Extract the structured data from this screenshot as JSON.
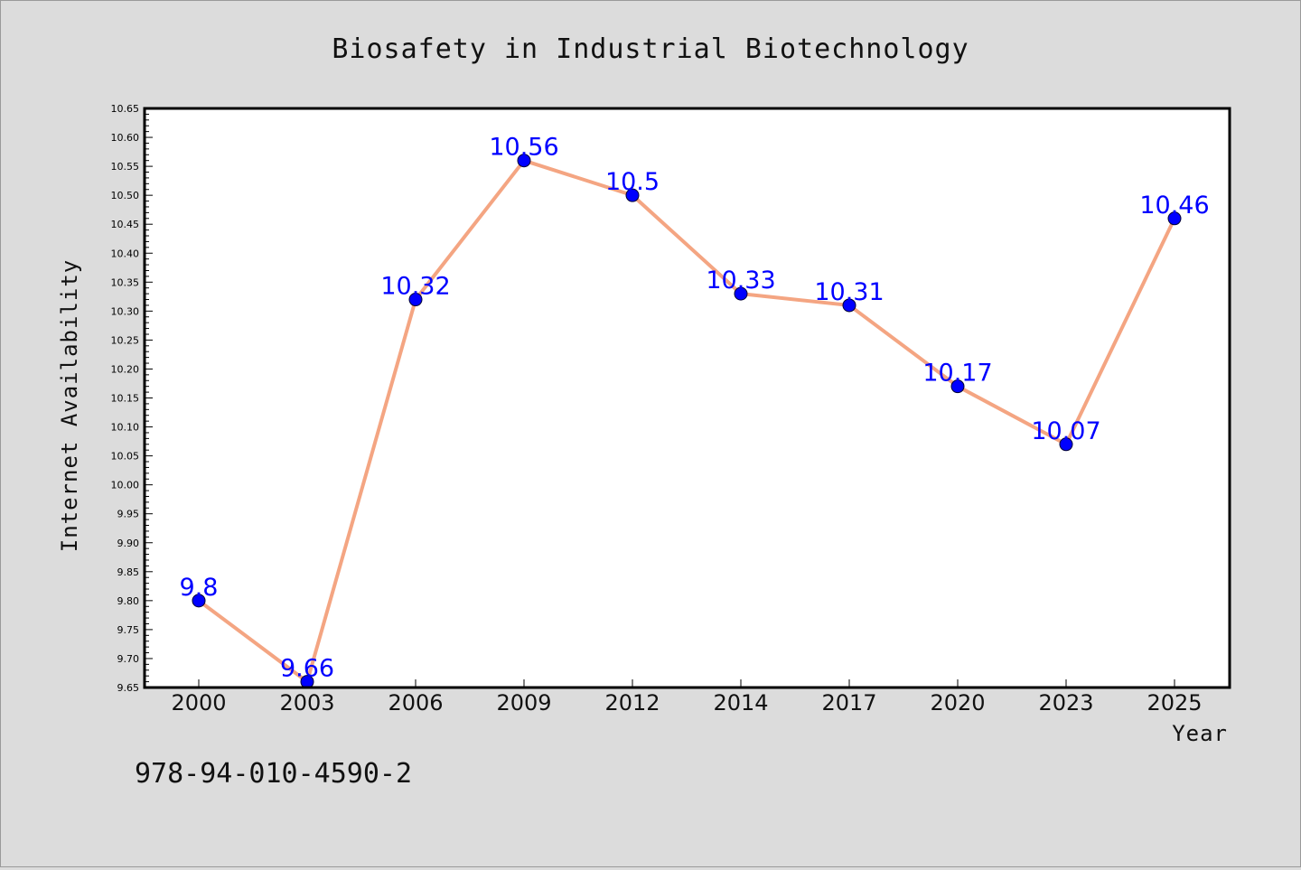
{
  "chart_data": {
    "type": "line",
    "title": "Biosafety in Industrial Biotechnology",
    "xlabel": "Year",
    "ylabel": "Internet Availability",
    "categories": [
      "2000",
      "2003",
      "2006",
      "2009",
      "2012",
      "2014",
      "2017",
      "2020",
      "2023",
      "2025"
    ],
    "series": [
      {
        "values": [
          9.8,
          9.66,
          10.32,
          10.56,
          10.5,
          10.33,
          10.31,
          10.17,
          10.07,
          10.46
        ],
        "labels": [
          "9.8",
          "9.66",
          "10.32",
          "10.56",
          "10.5",
          "10.33",
          "10.31",
          "10.17",
          "10.07",
          "10.46"
        ],
        "line_color": "#f4a582",
        "marker_color": "#0000ff"
      }
    ],
    "ylim": [
      9.65,
      10.65
    ],
    "yticks": [
      "9.65",
      "9.70",
      "9.75",
      "9.80",
      "9.85",
      "9.90",
      "9.95",
      "10.00",
      "10.05",
      "10.10",
      "10.15",
      "10.20",
      "10.25",
      "10.30",
      "10.35",
      "10.40",
      "10.45",
      "10.50",
      "10.55",
      "10.60",
      "10.65"
    ],
    "grid": false,
    "data_label_color": "#0000ff"
  },
  "annotation": "978-94-010-4590-2",
  "colors": {
    "background": "#dcdcdc",
    "plot_background": "#ffffff"
  }
}
